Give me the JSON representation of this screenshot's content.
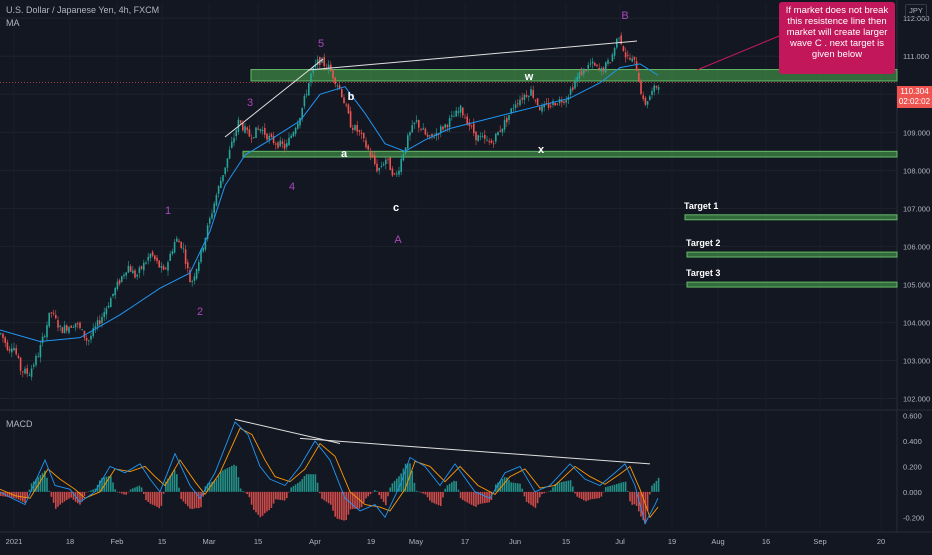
{
  "header": {
    "symbol_line": "U.S. Dollar / Japanese Yen, 4h, FXCM",
    "indicator": "MA"
  },
  "currency_label": "JPY",
  "last_price": {
    "value": "110.304",
    "countdown": "02:02:02"
  },
  "callout_text": "If market does not break this resistence line then market will create larger wave C . next target is given below",
  "colors": {
    "background": "#131722",
    "up": "#26a69a",
    "down": "#ef5350",
    "ma": "#2196f3",
    "zone": "#4caf50",
    "wave_label": "#ab47bc",
    "callout": "#c2185b"
  },
  "chart_data": {
    "type": "candlestick",
    "price_axis": {
      "ticks": [
        "112.000",
        "111.000",
        "110.000",
        "109.000",
        "108.000",
        "107.000",
        "106.000",
        "105.000",
        "104.000",
        "103.000",
        "102.000"
      ],
      "range": [
        101.75,
        112.4
      ]
    },
    "time_axis": {
      "labels": [
        "2021",
        "18",
        "Feb",
        "15",
        "Mar",
        "15",
        "Apr",
        "19",
        "May",
        "17",
        "Jun",
        "15",
        "Jul",
        "19",
        "Aug",
        "16",
        "Sep",
        "20"
      ]
    },
    "zones": [
      {
        "name": "resistance",
        "from": 110.35,
        "to": 110.65
      },
      {
        "name": "support",
        "from": 108.35,
        "to": 108.5
      }
    ],
    "targets": [
      {
        "label": "Target 1",
        "from": 106.7,
        "to": 106.83
      },
      {
        "label": "Target 2",
        "from": 105.72,
        "to": 105.85
      },
      {
        "label": "Target 3",
        "from": 104.93,
        "to": 105.06
      }
    ],
    "wave_labels": [
      "1",
      "2",
      "3",
      "4",
      "5",
      "A",
      "B",
      "a",
      "b",
      "c",
      "w",
      "x"
    ],
    "price_path": [
      [
        0,
        103.7
      ],
      [
        8,
        103.3
      ],
      [
        12,
        103.45
      ],
      [
        20,
        102.75
      ],
      [
        28,
        102.65
      ],
      [
        38,
        103.2
      ],
      [
        50,
        104.3
      ],
      [
        60,
        103.8
      ],
      [
        75,
        104.0
      ],
      [
        87,
        103.5
      ],
      [
        100,
        104.1
      ],
      [
        115,
        104.9
      ],
      [
        127,
        105.5
      ],
      [
        135,
        105.2
      ],
      [
        150,
        105.8
      ],
      [
        163,
        105.3
      ],
      [
        175,
        106.2
      ],
      [
        182,
        106.0
      ],
      [
        190,
        105.0
      ],
      [
        200,
        105.8
      ],
      [
        215,
        107.3
      ],
      [
        230,
        108.6
      ],
      [
        238,
        109.3
      ],
      [
        248,
        108.9
      ],
      [
        260,
        109.1
      ],
      [
        270,
        108.8
      ],
      [
        285,
        108.6
      ],
      [
        300,
        109.5
      ],
      [
        310,
        110.5
      ],
      [
        318,
        110.9
      ],
      [
        328,
        110.7
      ],
      [
        340,
        110.1
      ],
      [
        350,
        109.2
      ],
      [
        358,
        109.0
      ],
      [
        368,
        108.5
      ],
      [
        377,
        108.0
      ],
      [
        385,
        108.3
      ],
      [
        395,
        107.8
      ],
      [
        405,
        108.7
      ],
      [
        415,
        109.3
      ],
      [
        428,
        108.8
      ],
      [
        445,
        109.2
      ],
      [
        460,
        109.6
      ],
      [
        475,
        108.9
      ],
      [
        490,
        108.7
      ],
      [
        505,
        109.3
      ],
      [
        515,
        109.8
      ],
      [
        530,
        110.1
      ],
      [
        540,
        109.6
      ],
      [
        555,
        109.8
      ],
      [
        565,
        109.9
      ],
      [
        578,
        110.5
      ],
      [
        590,
        110.8
      ],
      [
        600,
        110.6
      ],
      [
        610,
        110.9
      ],
      [
        618,
        111.6
      ],
      [
        625,
        111.0
      ],
      [
        635,
        110.8
      ],
      [
        643,
        109.7
      ],
      [
        650,
        110.0
      ],
      [
        658,
        110.3
      ]
    ],
    "ma_path": [
      [
        0,
        103.8
      ],
      [
        40,
        103.5
      ],
      [
        80,
        103.6
      ],
      [
        120,
        104.2
      ],
      [
        160,
        104.9
      ],
      [
        190,
        105.3
      ],
      [
        210,
        106.4
      ],
      [
        225,
        107.6
      ],
      [
        245,
        108.4
      ],
      [
        270,
        108.8
      ],
      [
        300,
        109.3
      ],
      [
        320,
        110.0
      ],
      [
        345,
        110.2
      ],
      [
        365,
        109.5
      ],
      [
        385,
        108.7
      ],
      [
        405,
        108.5
      ],
      [
        425,
        108.8
      ],
      [
        450,
        109.1
      ],
      [
        480,
        109.3
      ],
      [
        510,
        109.5
      ],
      [
        540,
        109.7
      ],
      [
        570,
        109.9
      ],
      [
        600,
        110.3
      ],
      [
        620,
        110.7
      ],
      [
        640,
        110.8
      ],
      [
        658,
        110.5
      ]
    ],
    "macd": {
      "ticks": [
        "0.600",
        "0.400",
        "0.200",
        "0.000",
        "-0.200"
      ],
      "range": [
        -0.3,
        0.62
      ],
      "macd_line": [
        [
          0,
          0.0
        ],
        [
          12,
          -0.05
        ],
        [
          25,
          -0.1
        ],
        [
          45,
          0.25
        ],
        [
          55,
          0.05
        ],
        [
          70,
          0.02
        ],
        [
          80,
          -0.08
        ],
        [
          95,
          0.0
        ],
        [
          110,
          0.2
        ],
        [
          125,
          0.15
        ],
        [
          140,
          0.22
        ],
        [
          150,
          0.1
        ],
        [
          160,
          0.0
        ],
        [
          175,
          0.3
        ],
        [
          190,
          0.05
        ],
        [
          200,
          -0.05
        ],
        [
          215,
          0.15
        ],
        [
          235,
          0.55
        ],
        [
          248,
          0.45
        ],
        [
          260,
          0.2
        ],
        [
          270,
          0.1
        ],
        [
          285,
          0.05
        ],
        [
          300,
          0.2
        ],
        [
          315,
          0.4
        ],
        [
          330,
          0.25
        ],
        [
          345,
          -0.05
        ],
        [
          360,
          -0.15
        ],
        [
          375,
          -0.1
        ],
        [
          385,
          -0.2
        ],
        [
          400,
          0.05
        ],
        [
          410,
          0.27
        ],
        [
          425,
          0.2
        ],
        [
          440,
          0.05
        ],
        [
          455,
          0.22
        ],
        [
          475,
          0.0
        ],
        [
          490,
          -0.05
        ],
        [
          505,
          0.15
        ],
        [
          520,
          0.2
        ],
        [
          535,
          0.0
        ],
        [
          550,
          0.05
        ],
        [
          570,
          0.22
        ],
        [
          585,
          0.1
        ],
        [
          600,
          0.05
        ],
        [
          615,
          0.15
        ],
        [
          625,
          0.22
        ],
        [
          635,
          0.05
        ],
        [
          645,
          -0.25
        ],
        [
          655,
          -0.1
        ],
        [
          658,
          -0.05
        ]
      ],
      "signal_line": [
        [
          0,
          0.02
        ],
        [
          15,
          -0.03
        ],
        [
          30,
          -0.05
        ],
        [
          48,
          0.18
        ],
        [
          60,
          0.1
        ],
        [
          75,
          0.02
        ],
        [
          85,
          -0.05
        ],
        [
          100,
          0.0
        ],
        [
          115,
          0.18
        ],
        [
          130,
          0.16
        ],
        [
          145,
          0.2
        ],
        [
          155,
          0.12
        ],
        [
          165,
          0.05
        ],
        [
          180,
          0.25
        ],
        [
          195,
          0.08
        ],
        [
          205,
          -0.02
        ],
        [
          220,
          0.15
        ],
        [
          240,
          0.5
        ],
        [
          252,
          0.45
        ],
        [
          265,
          0.25
        ],
        [
          275,
          0.12
        ],
        [
          290,
          0.08
        ],
        [
          305,
          0.18
        ],
        [
          320,
          0.38
        ],
        [
          335,
          0.28
        ],
        [
          350,
          0.0
        ],
        [
          365,
          -0.1
        ],
        [
          380,
          -0.12
        ],
        [
          390,
          -0.15
        ],
        [
          405,
          0.02
        ],
        [
          415,
          0.24
        ],
        [
          430,
          0.2
        ],
        [
          445,
          0.08
        ],
        [
          460,
          0.2
        ],
        [
          478,
          0.05
        ],
        [
          495,
          -0.02
        ],
        [
          510,
          0.12
        ],
        [
          525,
          0.18
        ],
        [
          540,
          0.03
        ],
        [
          555,
          0.05
        ],
        [
          575,
          0.2
        ],
        [
          590,
          0.12
        ],
        [
          605,
          0.06
        ],
        [
          620,
          0.14
        ],
        [
          630,
          0.2
        ],
        [
          640,
          0.02
        ],
        [
          650,
          -0.2
        ],
        [
          658,
          -0.12
        ]
      ],
      "trendlines": [
        [
          [
            235,
            0.57
          ],
          [
            340,
            0.38
          ]
        ],
        [
          [
            300,
            0.42
          ],
          [
            650,
            0.22
          ]
        ]
      ]
    }
  }
}
